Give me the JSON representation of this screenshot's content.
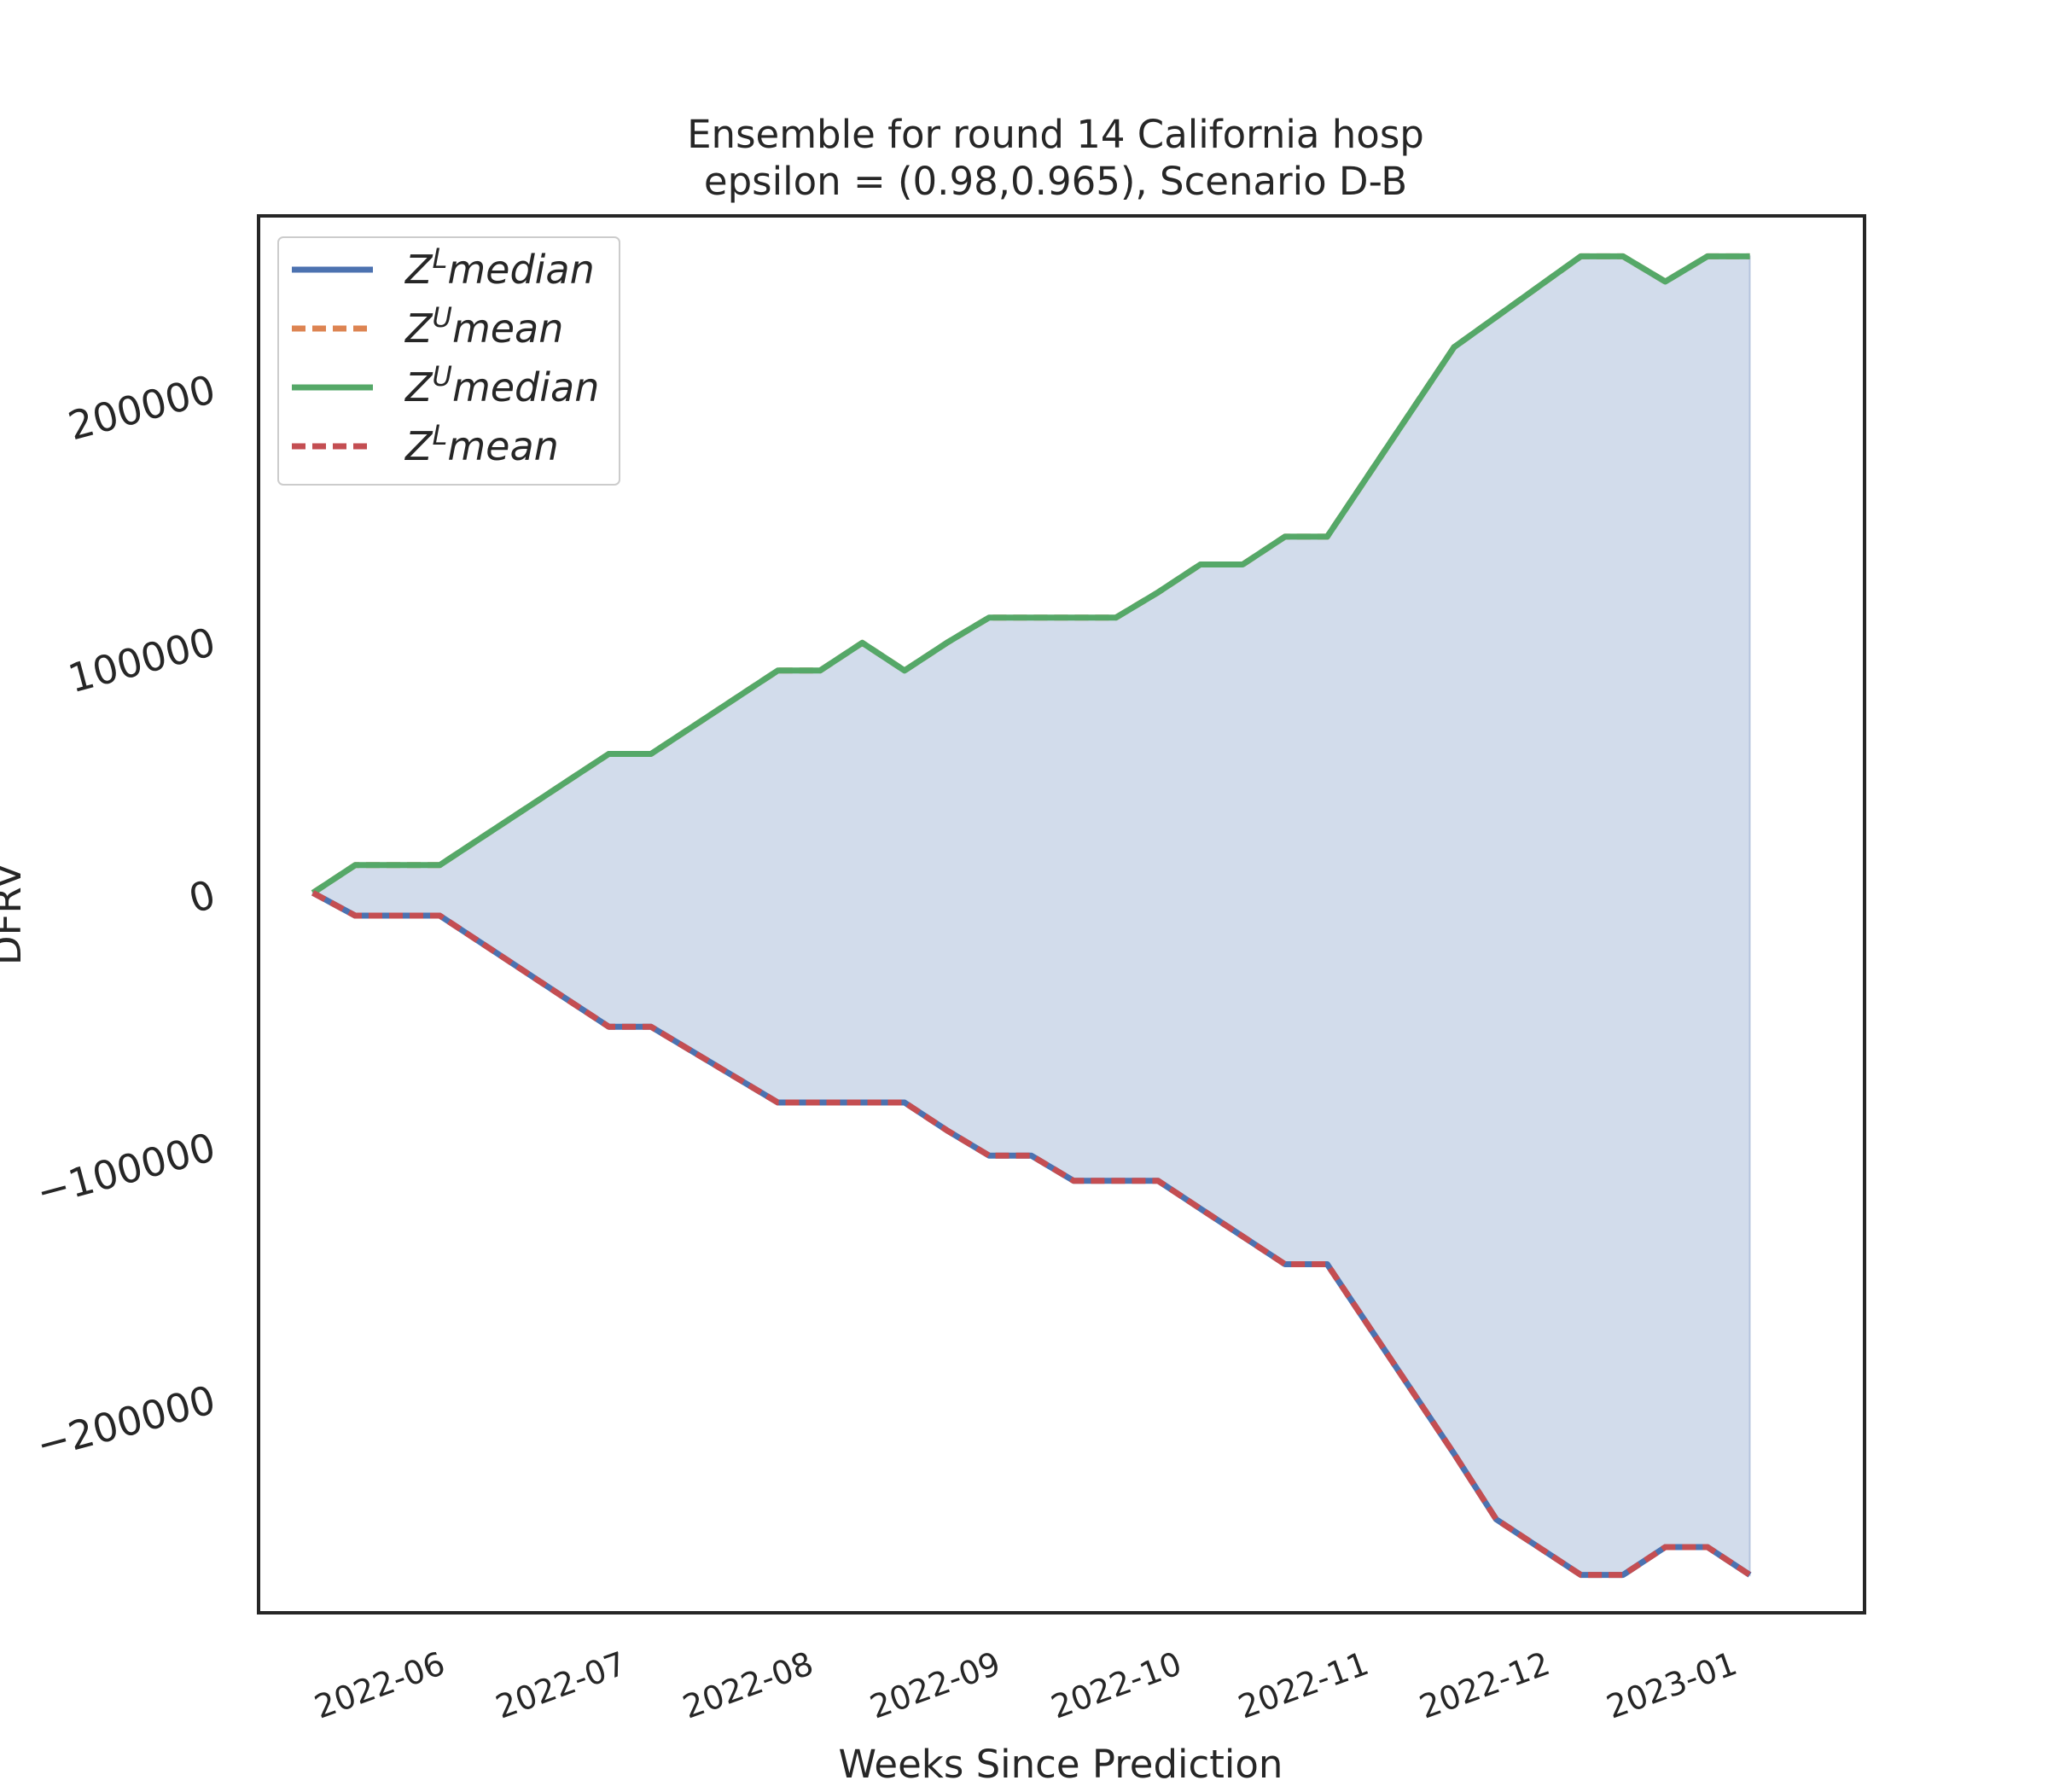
{
  "chart_data": {
    "type": "area",
    "title_line1": "Ensemble for round 14 California  hosp",
    "title_line2": "epsilon = (0.98,0.965), Scenario D-B",
    "xlabel": "Weeks Since Prediction",
    "ylabel": "DFRV",
    "ylim": [
      -285000,
      268000
    ],
    "yticks": [
      200000,
      100000,
      0,
      -100000,
      -200000
    ],
    "ytick_labels": [
      "200000",
      "100000",
      "0",
      "−100000",
      "−200000"
    ],
    "xlim": [
      "2022-05-05",
      "2023-01-26"
    ],
    "xtick_dates": [
      "2022-06-01",
      "2022-07-01",
      "2022-08-01",
      "2022-09-01",
      "2022-10-01",
      "2022-11-01",
      "2022-12-01",
      "2023-01-01"
    ],
    "xtick_labels": [
      "2022-06",
      "2022-07",
      "2022-08",
      "2022-09",
      "2022-10",
      "2022-11",
      "2022-12",
      "2023-01"
    ],
    "grid": false,
    "legend_position": "upper-left",
    "fill_between": "Z^U median and Z^L median",
    "x": [
      "2022-05-14",
      "2022-05-21",
      "2022-05-28",
      "2022-06-04",
      "2022-06-11",
      "2022-06-18",
      "2022-06-25",
      "2022-07-02",
      "2022-07-09",
      "2022-07-16",
      "2022-07-23",
      "2022-07-30",
      "2022-08-06",
      "2022-08-13",
      "2022-08-20",
      "2022-08-27",
      "2022-09-03",
      "2022-09-10",
      "2022-09-17",
      "2022-09-24",
      "2022-10-01",
      "2022-10-08",
      "2022-10-15",
      "2022-10-22",
      "2022-10-29",
      "2022-11-05",
      "2022-11-12",
      "2022-11-19",
      "2022-11-26",
      "2022-12-03",
      "2022-12-10",
      "2022-12-17",
      "2022-12-24",
      "2022-12-31",
      "2023-01-07"
    ],
    "series": [
      {
        "name": "median",
        "prefix": "Z",
        "sup": "L",
        "color": "#4c72b0",
        "dashed": false,
        "values": [
          0,
          -9000,
          -9000,
          -9000,
          -20000,
          -31000,
          -42000,
          -53000,
          -53000,
          -63000,
          -73000,
          -83000,
          -83000,
          -83000,
          -83000,
          -94000,
          -104000,
          -104000,
          -114000,
          -114000,
          -114000,
          -125000,
          -136000,
          -147000,
          -147000,
          -172000,
          -197000,
          -222000,
          -248000,
          -259000,
          -270000,
          -270000,
          -259000,
          -259000,
          -270000
        ]
      },
      {
        "name": "mean",
        "prefix": "Z",
        "sup": "U",
        "color": "#dd8452",
        "dashed": true,
        "values": [
          0,
          11000,
          11000,
          11000,
          22000,
          33000,
          44000,
          55000,
          55000,
          66000,
          77000,
          88000,
          88000,
          99000,
          88000,
          99000,
          109000,
          109000,
          109000,
          109000,
          119000,
          130000,
          130000,
          141000,
          141000,
          166000,
          191000,
          216000,
          228000,
          240000,
          252000,
          252000,
          242000,
          252000,
          252000
        ]
      },
      {
        "name": "median",
        "prefix": "Z",
        "sup": "U",
        "color": "#55a868",
        "dashed": false,
        "values": [
          0,
          11000,
          11000,
          11000,
          22000,
          33000,
          44000,
          55000,
          55000,
          66000,
          77000,
          88000,
          88000,
          99000,
          88000,
          99000,
          109000,
          109000,
          109000,
          109000,
          119000,
          130000,
          130000,
          141000,
          141000,
          166000,
          191000,
          216000,
          228000,
          240000,
          252000,
          252000,
          242000,
          252000,
          252000
        ]
      },
      {
        "name": "mean",
        "prefix": "Z",
        "sup": "L",
        "color": "#c44e52",
        "dashed": true,
        "values": [
          0,
          -9000,
          -9000,
          -9000,
          -20000,
          -31000,
          -42000,
          -53000,
          -53000,
          -63000,
          -73000,
          -83000,
          -83000,
          -83000,
          -83000,
          -94000,
          -104000,
          -104000,
          -114000,
          -114000,
          -114000,
          -125000,
          -136000,
          -147000,
          -147000,
          -172000,
          -197000,
          -222000,
          -248000,
          -259000,
          -270000,
          -270000,
          -259000,
          -259000,
          -270000
        ]
      }
    ],
    "fill_color": "#4c72b0"
  }
}
